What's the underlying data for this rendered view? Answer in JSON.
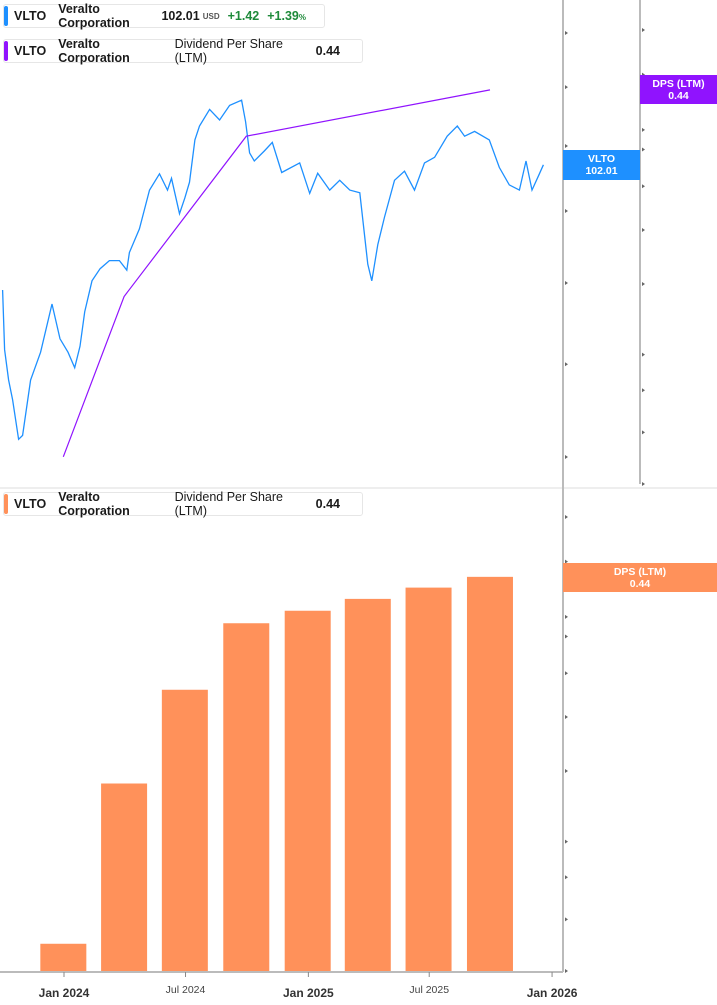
{
  "legend_price": {
    "ticker": "VLTO",
    "company": "Veralto Corporation",
    "price": "102.01",
    "currency": "USD",
    "change": "+1.42",
    "change_pct": "+1.39",
    "pct_sign": "%",
    "color": "#1e90ff"
  },
  "legend_dps_top": {
    "ticker": "VLTO",
    "company": "Veralto Corporation",
    "metric": "Dividend Per Share (LTM)",
    "value": "0.44",
    "color": "#9013fe"
  },
  "legend_dps_bottom": {
    "ticker": "VLTO",
    "company": "Veralto Corporation",
    "metric": "Dividend Per Share (LTM)",
    "value": "0.44",
    "color": "#ff915a"
  },
  "badges": {
    "price": {
      "label": "VLTO",
      "value": "102.01",
      "color": "#1e90ff"
    },
    "dps_top": {
      "label": "DPS (LTM)",
      "value": "0.44",
      "color": "#9013fe"
    },
    "dps_bottom": {
      "label": "DPS (LTM)",
      "value": "0.44",
      "color": "#ff915a"
    }
  },
  "chart_data": [
    {
      "type": "line",
      "title": "",
      "scale": "log",
      "price_axis": {
        "ticks": [
          "65.00",
          "75.00",
          "85.00",
          "95.00",
          "105.00",
          "115.00",
          "125.00"
        ]
      },
      "dps_axis": {
        "ticks": [
          "0.08",
          "0.10",
          "0.12",
          "0.14",
          "0.19",
          "0.24",
          "0.29",
          "0.34",
          "0.37",
          "0.47",
          "0.57"
        ]
      },
      "series": [
        {
          "name": "VLTO",
          "axis": "price",
          "color": "#1e90ff",
          "points": [
            [
              "2023-10-01",
              84.1
            ],
            [
              "2023-10-04",
              76.7
            ],
            [
              "2023-10-10",
              73.2
            ],
            [
              "2023-10-16",
              71.0
            ],
            [
              "2023-10-25",
              66.8
            ],
            [
              "2023-10-31",
              67.2
            ],
            [
              "2023-11-12",
              73.2
            ],
            [
              "2023-11-27",
              76.4
            ],
            [
              "2023-12-14",
              82.3
            ],
            [
              "2023-12-26",
              78.0
            ],
            [
              "2024-01-07",
              76.4
            ],
            [
              "2024-01-17",
              74.6
            ],
            [
              "2024-01-25",
              77.1
            ],
            [
              "2024-02-01",
              81.3
            ],
            [
              "2024-02-12",
              85.3
            ],
            [
              "2024-02-24",
              86.9
            ],
            [
              "2024-03-09",
              88.0
            ],
            [
              "2024-03-24",
              88.0
            ],
            [
              "2024-04-04",
              86.7
            ],
            [
              "2024-04-08",
              89.1
            ],
            [
              "2024-04-23",
              92.4
            ],
            [
              "2024-05-08",
              98.1
            ],
            [
              "2024-05-23",
              100.6
            ],
            [
              "2024-06-04",
              98.1
            ],
            [
              "2024-06-10",
              99.9
            ],
            [
              "2024-06-22",
              94.6
            ],
            [
              "2024-06-30",
              96.9
            ],
            [
              "2024-07-07",
              99.3
            ],
            [
              "2024-07-15",
              106.0
            ],
            [
              "2024-07-22",
              108.3
            ],
            [
              "2024-08-06",
              111.1
            ],
            [
              "2024-08-21",
              109.3
            ],
            [
              "2024-09-05",
              111.8
            ],
            [
              "2024-09-23",
              112.7
            ],
            [
              "2024-09-29",
              109.0
            ],
            [
              "2024-10-05",
              103.9
            ],
            [
              "2024-10-12",
              102.6
            ],
            [
              "2024-10-27",
              104.2
            ],
            [
              "2024-11-08",
              105.6
            ],
            [
              "2024-11-22",
              100.8
            ],
            [
              "2024-12-19",
              102.3
            ],
            [
              "2025-01-03",
              97.6
            ],
            [
              "2025-01-15",
              100.7
            ],
            [
              "2025-02-02",
              98.1
            ],
            [
              "2025-02-17",
              99.6
            ],
            [
              "2025-03-04",
              98.1
            ],
            [
              "2025-03-19",
              97.7
            ],
            [
              "2025-03-31",
              87.5
            ],
            [
              "2025-04-06",
              85.3
            ],
            [
              "2025-04-15",
              90.2
            ],
            [
              "2025-04-25",
              94.1
            ],
            [
              "2025-05-10",
              99.6
            ],
            [
              "2025-05-25",
              101.0
            ],
            [
              "2025-06-09",
              98.1
            ],
            [
              "2025-06-24",
              102.3
            ],
            [
              "2025-07-09",
              103.2
            ],
            [
              "2025-07-28",
              106.6
            ],
            [
              "2025-08-12",
              108.3
            ],
            [
              "2025-08-23",
              106.6
            ],
            [
              "2025-09-07",
              107.4
            ],
            [
              "2025-09-29",
              106.0
            ],
            [
              "2025-10-14",
              101.6
            ],
            [
              "2025-10-29",
              98.9
            ],
            [
              "2025-11-13",
              98.1
            ],
            [
              "2025-11-23",
              102.6
            ],
            [
              "2025-12-02",
              98.1
            ],
            [
              "2025-12-13",
              100.6
            ],
            [
              "2025-12-19",
              102.01
            ]
          ]
        },
        {
          "name": "DPS (LTM)",
          "axis": "dps",
          "color": "#9013fe",
          "points": [
            [
              "2023-12-31",
              0.09
            ],
            [
              "2024-03-31",
              0.18
            ],
            [
              "2024-09-30",
              0.36
            ],
            [
              "2025-09-30",
              0.44
            ]
          ]
        }
      ]
    },
    {
      "type": "bar",
      "scale": "log",
      "color": "#ff915a",
      "categories": [
        "2023-12-31",
        "2024-03-31",
        "2024-06-30",
        "2024-09-30",
        "2024-12-31",
        "2025-03-31",
        "2025-06-30",
        "2025-09-30"
      ],
      "values": [
        0.09,
        0.18,
        0.27,
        0.36,
        0.38,
        0.4,
        0.42,
        0.44
      ],
      "y_axis": {
        "ticks": [
          "0.08",
          "0.10",
          "0.12",
          "0.14",
          "0.19",
          "0.24",
          "0.29",
          "0.34",
          "0.37",
          "0.47",
          "0.57"
        ]
      },
      "x_axis": {
        "ticks": [
          {
            "label": "Jan 2024",
            "date": "2024-01-01",
            "major": true
          },
          {
            "label": "Jul 2024",
            "date": "2024-07-01",
            "major": false
          },
          {
            "label": "Jan 2025",
            "date": "2025-01-01",
            "major": true
          },
          {
            "label": "Jul 2025",
            "date": "2025-07-01",
            "major": false
          },
          {
            "label": "Jan 2026",
            "date": "2026-01-01",
            "major": true
          }
        ]
      }
    }
  ]
}
